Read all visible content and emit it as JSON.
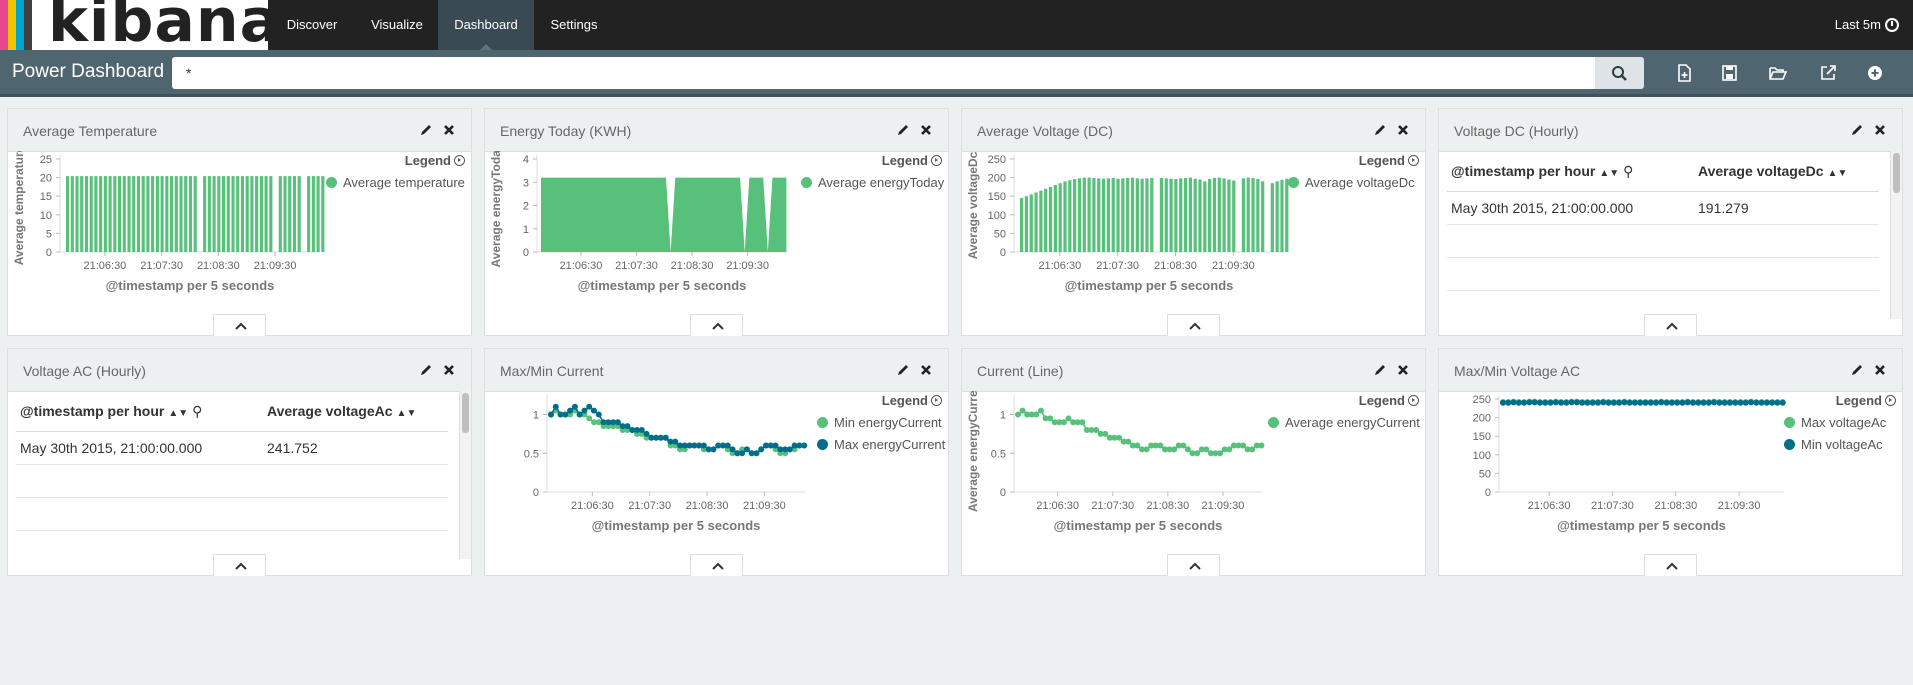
{
  "brand": {
    "name": "kibana",
    "stripes": [
      "#e8478b",
      "#f2c500",
      "#00a5cf",
      "#3f3f3f"
    ]
  },
  "nav": {
    "items": [
      "Discover",
      "Visualize",
      "Dashboard",
      "Settings"
    ],
    "active": "Dashboard",
    "time_range": "Last 5m"
  },
  "dashboard": {
    "title": "Power Dashboard",
    "query": "*"
  },
  "colors": {
    "green": "#57c17b",
    "teal": "#006e8a"
  },
  "legend_label": "Legend",
  "panels": [
    {
      "title": "Average Temperature"
    },
    {
      "title": "Energy Today (KWH)"
    },
    {
      "title": "Average Voltage (DC)"
    },
    {
      "title": "Voltage DC (Hourly)"
    },
    {
      "title": "Voltage AC (Hourly)"
    },
    {
      "title": "Max/Min Current"
    },
    {
      "title": "Current (Line)"
    },
    {
      "title": "Max/Min Voltage AC"
    }
  ],
  "tables": {
    "voltage_dc": {
      "headers": [
        "@timestamp per hour",
        "Average voltageDc"
      ],
      "rows": [
        [
          "May 30th 2015, 21:00:00.000",
          "191.279"
        ]
      ]
    },
    "voltage_ac": {
      "headers": [
        "@timestamp per hour",
        "Average voltageAc"
      ],
      "rows": [
        [
          "May 30th 2015, 21:00:00.000",
          "241.752"
        ]
      ]
    }
  },
  "chart_data": [
    {
      "id": "avg_temp",
      "type": "bar",
      "ylabel": "Average temperature",
      "xlabel": "@timestamp per 5 seconds",
      "ylim": [
        0,
        25
      ],
      "yticks": [
        0,
        5,
        10,
        15,
        20,
        25
      ],
      "xticks": [
        "21:06:30",
        "21:07:30",
        "21:08:30",
        "21:09:30"
      ],
      "series": [
        {
          "name": "Average temperature",
          "color": "green",
          "values": [
            20.4,
            20.4,
            20.4,
            20.4,
            20.4,
            20.4,
            20.4,
            20.4,
            20.4,
            20.4,
            20.4,
            20.4,
            20.4,
            20.4,
            20.4,
            20.4,
            20.4,
            20.4,
            20.4,
            20.4,
            20.4,
            20.4,
            20.4,
            20.4,
            20.4,
            20.4,
            20.4,
            20.4,
            null,
            20.4,
            20.4,
            20.4,
            20.4,
            20.4,
            20.4,
            20.4,
            20.4,
            20.4,
            20.4,
            20.4,
            20.4,
            20.4,
            20.4,
            20.4,
            null,
            20.4,
            20.4,
            20.4,
            20.4,
            20.4,
            null,
            20.4,
            20.4,
            20.4,
            20.4
          ]
        }
      ]
    },
    {
      "id": "energy_today",
      "type": "area",
      "ylabel": "Average energyToday",
      "xlabel": "@timestamp per 5 seconds",
      "ylim": [
        0,
        4
      ],
      "yticks": [
        0,
        1,
        2,
        3,
        4
      ],
      "xticks": [
        "21:06:30",
        "21:07:30",
        "21:08:30",
        "21:09:30"
      ],
      "series": [
        {
          "name": "Average energyToday",
          "color": "green",
          "values": [
            3.2,
            3.2,
            3.2,
            3.2,
            3.2,
            3.2,
            3.2,
            3.2,
            3.2,
            3.2,
            3.2,
            3.2,
            3.2,
            3.2,
            3.2,
            3.2,
            3.2,
            3.2,
            3.2,
            3.2,
            3.2,
            3.2,
            3.2,
            3.2,
            3.2,
            3.2,
            3.2,
            3.2,
            0,
            3.2,
            3.2,
            3.2,
            3.2,
            3.2,
            3.2,
            3.2,
            3.2,
            3.2,
            3.2,
            3.2,
            3.2,
            3.2,
            3.2,
            3.2,
            0,
            3.2,
            3.2,
            3.2,
            3.2,
            0,
            3.2,
            3.2,
            3.2,
            3.2
          ]
        }
      ]
    },
    {
      "id": "avg_voltage_dc",
      "type": "bar",
      "ylabel": "Average voltageDc",
      "xlabel": "@timestamp per 5 seconds",
      "ylim": [
        0,
        250
      ],
      "yticks": [
        0,
        50,
        100,
        150,
        200,
        250
      ],
      "xticks": [
        "21:06:30",
        "21:07:30",
        "21:08:30",
        "21:09:30"
      ],
      "series": [
        {
          "name": "Average voltageDc",
          "color": "green",
          "values": [
            145,
            150,
            155,
            160,
            165,
            170,
            175,
            180,
            185,
            190,
            193,
            196,
            198,
            200,
            200,
            199,
            198,
            197,
            198,
            199,
            197,
            198,
            199,
            200,
            198,
            197,
            198,
            199,
            null,
            199,
            198,
            197,
            196,
            198,
            199,
            200,
            197,
            195,
            190,
            196,
            199,
            200,
            198,
            195,
            192,
            null,
            198,
            200,
            199,
            196,
            190,
            null,
            185,
            190,
            194,
            197
          ]
        }
      ]
    },
    {
      "id": "max_min_current",
      "type": "line",
      "ylabel": "",
      "xlabel": "@timestamp per 5 seconds",
      "ylim": [
        0,
        1.2
      ],
      "yticks": [
        0,
        0.5,
        1
      ],
      "xticks": [
        "21:06:30",
        "21:07:30",
        "21:08:30",
        "21:09:30"
      ],
      "series": [
        {
          "name": "Min energyCurrent",
          "color": "green",
          "values": [
            1.0,
            1.05,
            1.0,
            1.0,
            1.0,
            1.05,
            1.0,
            1.0,
            0.95,
            0.9,
            0.9,
            0.85,
            0.85,
            0.85,
            0.85,
            0.8,
            0.8,
            0.8,
            0.75,
            0.75,
            0.7,
            0.7,
            0.7,
            0.7,
            0.7,
            0.6,
            0.6,
            0.55,
            0.55,
            0.6,
            0.6,
            0.6,
            0.55,
            0.55,
            0.55,
            0.6,
            0.6,
            0.55,
            0.5,
            0.5,
            0.55,
            0.55,
            0.5,
            0.5,
            0.55,
            0.6,
            0.6,
            0.55,
            0.5,
            0.5,
            0.55,
            0.55,
            0.6,
            0.6
          ]
        },
        {
          "name": "Max energyCurrent",
          "color": "teal",
          "values": [
            1.0,
            1.1,
            1.0,
            1.0,
            1.05,
            1.1,
            1.0,
            1.05,
            1.1,
            1.05,
            1.0,
            0.9,
            0.9,
            0.9,
            0.9,
            0.85,
            0.85,
            0.8,
            0.8,
            0.8,
            0.75,
            0.7,
            0.7,
            0.7,
            0.7,
            0.65,
            0.65,
            0.6,
            0.6,
            0.6,
            0.6,
            0.6,
            0.6,
            0.55,
            0.55,
            0.6,
            0.6,
            0.6,
            0.55,
            0.5,
            0.5,
            0.55,
            0.5,
            0.5,
            0.55,
            0.6,
            0.6,
            0.6,
            0.55,
            0.55,
            0.55,
            0.6,
            0.6,
            0.6
          ]
        }
      ]
    },
    {
      "id": "current_line",
      "type": "line",
      "ylabel": "Average energyCurrent",
      "xlabel": "@timestamp per 5 seconds",
      "ylim": [
        0,
        1.2
      ],
      "yticks": [
        0,
        0.5,
        1
      ],
      "xticks": [
        "21:06:30",
        "21:07:30",
        "21:08:30",
        "21:09:30"
      ],
      "series": [
        {
          "name": "Average energyCurrent",
          "color": "green",
          "values": [
            1.0,
            1.05,
            1.0,
            1.0,
            1.0,
            1.05,
            0.95,
            0.95,
            0.9,
            0.9,
            0.9,
            0.95,
            0.9,
            0.9,
            0.9,
            0.8,
            0.8,
            0.8,
            0.75,
            0.75,
            0.7,
            0.7,
            0.7,
            0.65,
            0.65,
            0.6,
            0.6,
            0.55,
            0.55,
            0.6,
            0.6,
            0.6,
            0.55,
            0.55,
            0.55,
            0.6,
            0.6,
            0.55,
            0.5,
            0.5,
            0.55,
            0.55,
            0.5,
            0.5,
            0.5,
            0.55,
            0.55,
            0.6,
            0.6,
            0.6,
            0.55,
            0.55,
            0.6,
            0.6
          ]
        }
      ]
    },
    {
      "id": "max_min_voltage_ac",
      "type": "line",
      "ylabel": "",
      "xlabel": "@timestamp per 5 seconds",
      "ylim": [
        0,
        250
      ],
      "yticks": [
        0,
        50,
        100,
        150,
        200,
        250
      ],
      "xticks": [
        "21:06:30",
        "21:07:30",
        "21:08:30",
        "21:09:30"
      ],
      "series": [
        {
          "name": "Max voltageAc",
          "color": "green",
          "values": [
            242,
            242,
            243,
            242,
            242,
            243,
            243,
            242,
            242,
            242,
            243,
            242,
            242,
            243,
            243,
            242,
            242,
            242,
            242,
            243,
            242,
            242,
            242,
            243,
            242,
            242,
            242,
            242,
            242,
            242,
            243,
            242,
            242,
            242,
            242,
            243,
            242,
            242,
            242,
            242,
            243,
            242,
            242,
            242,
            242,
            242,
            242,
            243,
            242,
            242,
            242,
            242,
            242,
            242
          ]
        },
        {
          "name": "Min voltageAc",
          "color": "teal",
          "values": [
            240,
            240,
            241,
            240,
            240,
            241,
            241,
            240,
            240,
            240,
            241,
            240,
            240,
            241,
            241,
            240,
            240,
            240,
            240,
            241,
            240,
            240,
            240,
            241,
            240,
            240,
            240,
            240,
            240,
            240,
            241,
            240,
            240,
            240,
            240,
            241,
            240,
            240,
            240,
            240,
            241,
            240,
            240,
            240,
            240,
            240,
            240,
            241,
            240,
            240,
            240,
            240,
            240,
            240
          ]
        }
      ]
    }
  ]
}
